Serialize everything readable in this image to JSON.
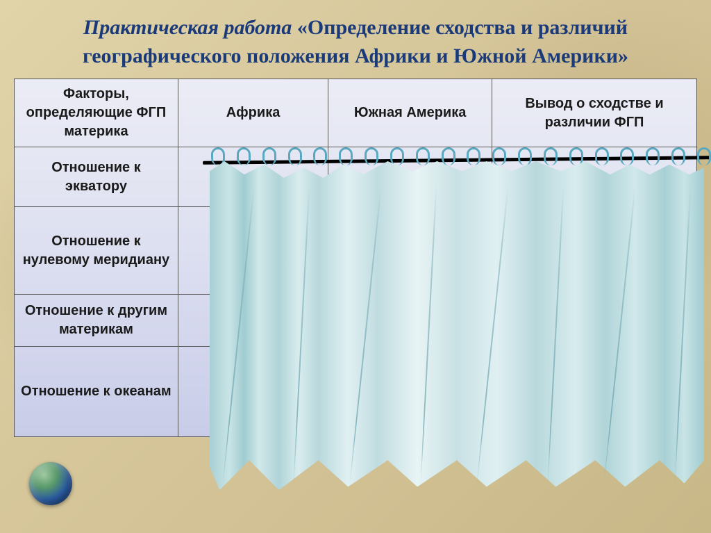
{
  "title": {
    "prefix": "Практическая работа",
    "main": "«Определение сходства и различий  географического положения Африки и Южной Америки»"
  },
  "table": {
    "headers": [
      "Факторы, определяющие ФГП материка",
      "Африка",
      "Южная Америка",
      "Вывод о сходстве и различии ФГП"
    ],
    "rows": [
      "Отношение к экватору",
      "Отношение к нулевому меридиану",
      "Отношение к другим материкам",
      "Отношение к океанам"
    ]
  },
  "colors": {
    "title_color": "#1a3a7a",
    "table_bg_top": "#ebecf5",
    "table_bg_bottom": "#c8cce8",
    "curtain_light": "#e8f4f5",
    "curtain_dark": "#a0ccd0",
    "rod": "#000000",
    "ring": "#5aa8c0"
  },
  "curtain": {
    "ring_count": 20,
    "fold_count": 8
  }
}
